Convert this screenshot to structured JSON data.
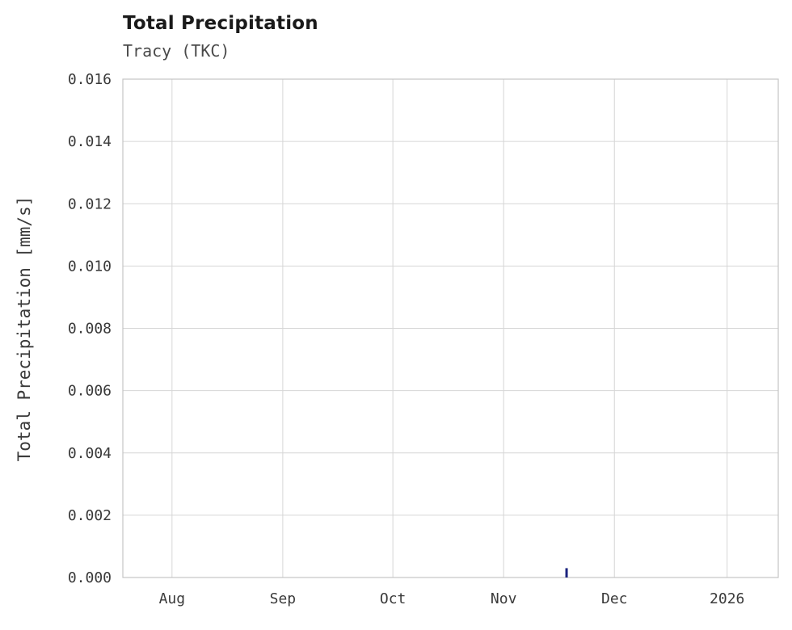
{
  "chart_data": {
    "type": "bar",
    "title": "Total Precipitation",
    "subtitle": "Tracy (TKC)",
    "ylabel": "Total Precipitation [mm/s]",
    "xlabel": "",
    "ylim": [
      0,
      0.016
    ],
    "ytick_step": 0.002,
    "ytick_labels": [
      "0.000",
      "0.002",
      "0.004",
      "0.006",
      "0.008",
      "0.010",
      "0.012",
      "0.014",
      "0.016"
    ],
    "xticks": [
      {
        "label": "Aug",
        "pos": 0.075
      },
      {
        "label": "Sep",
        "pos": 0.244
      },
      {
        "label": "Oct",
        "pos": 0.412
      },
      {
        "label": "Nov",
        "pos": 0.581
      },
      {
        "label": "Dec",
        "pos": 0.75
      },
      {
        "label": "2026",
        "pos": 0.922
      }
    ],
    "series": [
      {
        "name": "Total Precipitation",
        "points": [
          {
            "x_pos": 0.677,
            "x_approx": "mid-November",
            "value": 0.0003
          }
        ]
      }
    ],
    "grid": true,
    "legend": "none",
    "colors": {
      "bar": "#1a237e",
      "grid": "#d6d6d6",
      "border": "#c4c4c4",
      "background": "#ffffff",
      "tick_text": "#3a3a3a"
    }
  }
}
